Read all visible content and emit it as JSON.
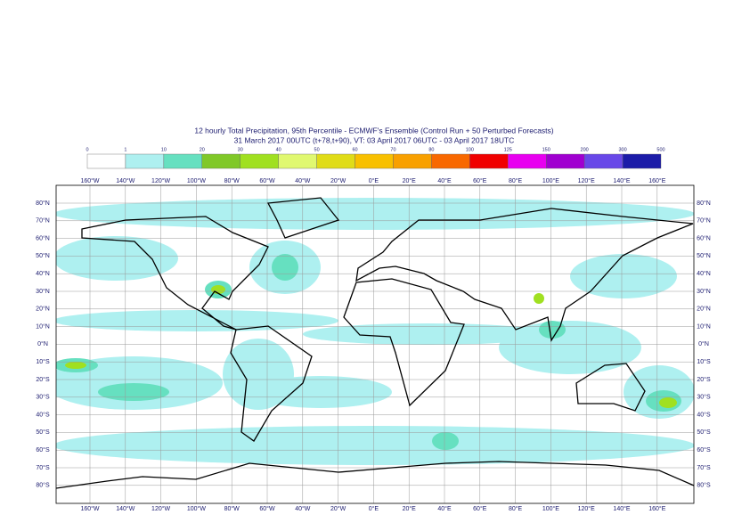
{
  "title": "12 hourly Total Precipitation, 95th Percentile - ECMWF's Ensemble (Control Run + 50 Perturbed Forecasts)",
  "subtitle": "31 March 2017 00UTC (t+78,t+90), VT: 03 April 2017 06UTC - 03 April 2017 18UTC",
  "legend": {
    "labels": [
      "0",
      "1",
      "10",
      "20",
      "30",
      "40",
      "50",
      "60",
      "70",
      "80",
      "100",
      "125",
      "150",
      "200",
      "300",
      "500"
    ],
    "colors": [
      "#ffffff",
      "#aef0f0",
      "#66e0c0",
      "#80c828",
      "#a0e020",
      "#e0f870",
      "#e0dc18",
      "#f8c000",
      "#f8a000",
      "#f86800",
      "#f00000",
      "#e800f0",
      "#a000d0",
      "#6848e8",
      "#1c1ca8",
      "#0c0c50"
    ]
  },
  "longitude_labels": [
    "160°W",
    "140°W",
    "120°W",
    "100°W",
    "80°W",
    "60°W",
    "40°W",
    "20°W",
    "0°E",
    "20°E",
    "40°E",
    "60°E",
    "80°E",
    "100°E",
    "120°E",
    "140°E",
    "160°E"
  ],
  "latitude_labels": [
    "80°N",
    "70°N",
    "60°N",
    "50°N",
    "40°N",
    "30°N",
    "20°N",
    "10°N",
    "0°N",
    "10°S",
    "20°S",
    "30°S",
    "40°S",
    "50°S",
    "60°S",
    "70°S",
    "80°S"
  ]
}
